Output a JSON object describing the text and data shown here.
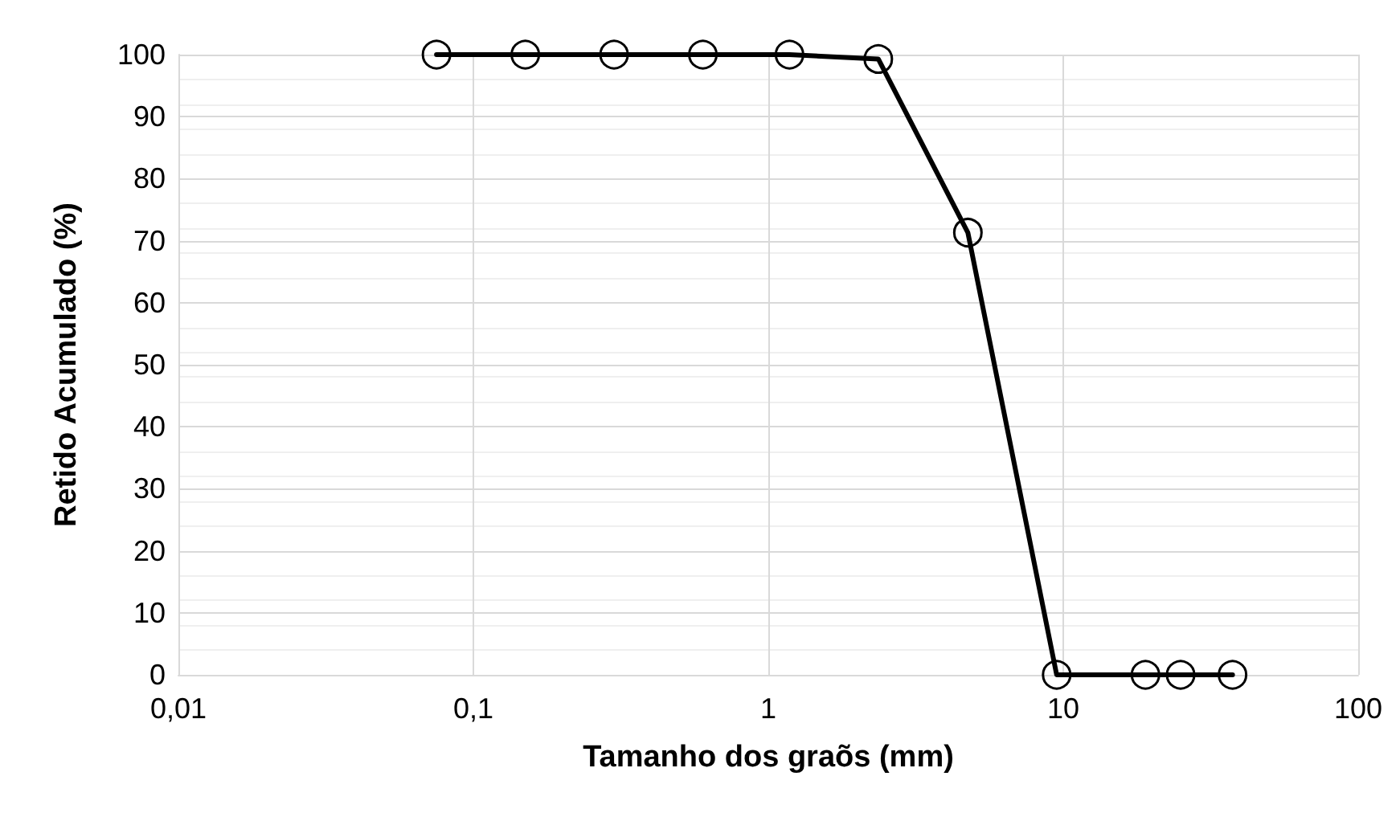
{
  "chart_data": {
    "type": "line",
    "xlabel": "Tamanho dos graõs (mm)",
    "ylabel": "Retido Acumulado (%)",
    "x": [
      0.075,
      0.15,
      0.3,
      0.6,
      1.18,
      2.36,
      4.75,
      9.5,
      19,
      25,
      37.5
    ],
    "series": [
      {
        "color": "#000000",
        "values": [
          100,
          100,
          100,
          100,
          100,
          99.3,
          71.3,
          0,
          0,
          0,
          0
        ]
      }
    ],
    "log": "x",
    "xlim": [
      0.01,
      100
    ],
    "xticks": [
      {
        "value": 0.01,
        "label": "0,01"
      },
      {
        "value": 0.1,
        "label": "0,1"
      },
      1,
      10,
      100
    ],
    "ylim": [
      0,
      100
    ],
    "yticks": [
      0,
      10,
      20,
      30,
      40,
      50,
      60,
      70,
      80,
      90,
      100
    ],
    "grid": true,
    "marker": "circle",
    "line_style": "solid"
  }
}
